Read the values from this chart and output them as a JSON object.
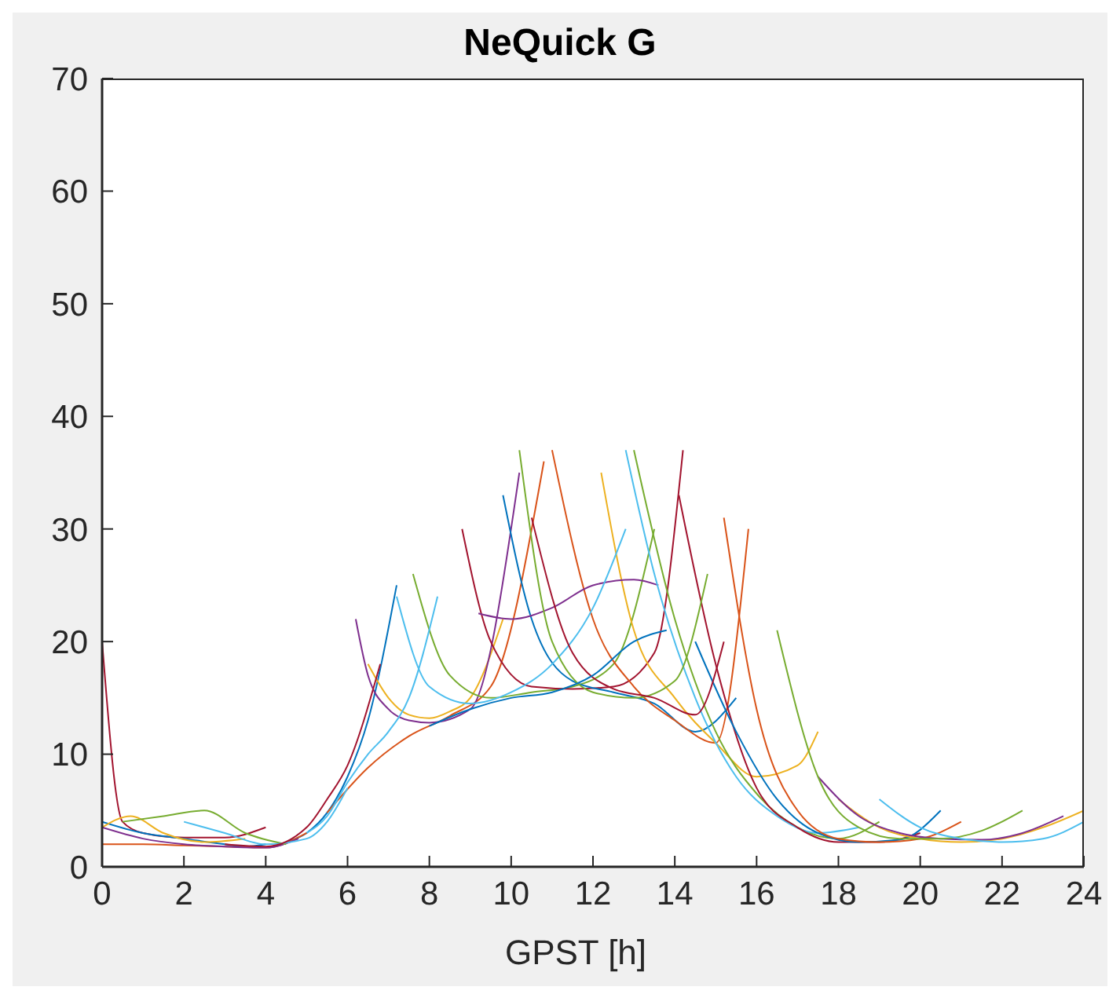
{
  "chart_data": {
    "type": "line",
    "title": "NeQuick G",
    "xlabel": "GPST [h]",
    "xlim": [
      0,
      24
    ],
    "xticks": [
      0,
      2,
      4,
      6,
      8,
      10,
      12,
      14,
      16,
      18,
      20,
      22,
      24
    ],
    "ylim": [
      0,
      70
    ],
    "yticks": [
      0,
      10,
      20,
      30,
      40,
      50,
      60,
      70
    ],
    "grid": false,
    "marker": "none",
    "line_style": "solid",
    "series": [
      {
        "color": "#0072bd",
        "x": [
          4.5,
          5,
          5.5,
          6,
          6.5,
          7.2
        ],
        "values": [
          2.2,
          3,
          4.8,
          8,
          13,
          25
        ]
      },
      {
        "color": "#d95319",
        "x": [
          5.5,
          6.5,
          7.5,
          8.5,
          9.5,
          10.8
        ],
        "values": [
          4.8,
          8.8,
          11.6,
          13.4,
          16,
          36
        ]
      },
      {
        "color": "#edb120",
        "x": [
          6.5,
          7,
          7.5,
          8,
          8.5,
          9,
          9.8
        ],
        "values": [
          18,
          15,
          13.5,
          13.2,
          13.8,
          15,
          22
        ]
      },
      {
        "color": "#7e2f8e",
        "x": [
          6.2,
          6.5,
          7,
          7.5,
          8,
          9,
          10.2
        ],
        "values": [
          22,
          17,
          14,
          13,
          12.8,
          14,
          35
        ]
      },
      {
        "color": "#77ac30",
        "x": [
          7.6,
          8.5,
          9.5,
          10.5,
          11.5,
          12.5,
          13.5
        ],
        "values": [
          26,
          17,
          15,
          15.5,
          16,
          18,
          30
        ]
      },
      {
        "color": "#4dbeee",
        "x": [
          5,
          5.5,
          6,
          6.5,
          7,
          7.5,
          8.2
        ],
        "values": [
          3,
          4.5,
          7.5,
          10,
          12,
          15,
          24
        ]
      },
      {
        "color": "#a2142f",
        "x": [
          8.8,
          9.5,
          10.5,
          11.5,
          12.5,
          13.5,
          14.2
        ],
        "values": [
          30,
          20,
          16,
          15.8,
          16,
          19,
          37
        ]
      },
      {
        "color": "#0072bd",
        "x": [
          9.8,
          10.5,
          11.5,
          12.5,
          13.5,
          14.5,
          15.5
        ],
        "values": [
          33,
          22,
          16.5,
          15.5,
          14.5,
          12,
          15
        ]
      },
      {
        "color": "#d95319",
        "x": [
          11,
          12,
          13,
          14,
          15,
          15.8
        ],
        "values": [
          37,
          22,
          16,
          13,
          11,
          30
        ]
      },
      {
        "color": "#edb120",
        "x": [
          12.2,
          13,
          14,
          15,
          16,
          17,
          17.5
        ],
        "values": [
          35,
          21,
          15,
          11,
          8,
          9,
          12
        ]
      },
      {
        "color": "#7e2f8e",
        "x": [
          9.2,
          10,
          11,
          12,
          13,
          13.6
        ],
        "values": [
          22.5,
          22,
          23,
          25,
          25.5,
          25
        ]
      },
      {
        "color": "#77ac30",
        "x": [
          13,
          14,
          15,
          16,
          17,
          18,
          19
        ],
        "values": [
          37,
          22,
          12,
          6.5,
          3.5,
          2.5,
          4
        ]
      },
      {
        "color": "#4dbeee",
        "x": [
          12.8,
          13.5,
          14.5,
          15.5,
          16.5,
          17.5,
          18.5
        ],
        "values": [
          37,
          26,
          15,
          8,
          4.5,
          3,
          3.5
        ]
      },
      {
        "color": "#a2142f",
        "x": [
          14.1,
          15,
          16,
          17,
          18,
          19,
          20
        ],
        "values": [
          33,
          18,
          7,
          3.5,
          2.2,
          2.2,
          3
        ]
      },
      {
        "color": "#0072bd",
        "x": [
          14.5,
          15.5,
          16.5,
          17.5,
          18.5,
          19.5,
          20.5
        ],
        "values": [
          20,
          12,
          6,
          3,
          2.2,
          2.4,
          5
        ]
      },
      {
        "color": "#d95319",
        "x": [
          15.2,
          16,
          17,
          18,
          19,
          20,
          21
        ],
        "values": [
          31,
          14,
          5,
          2.5,
          2.2,
          2.5,
          4
        ]
      },
      {
        "color": "#edb120",
        "x": [
          18,
          19,
          20,
          21,
          22,
          23,
          24
        ],
        "values": [
          6,
          3.5,
          2.5,
          2.2,
          2.5,
          3.5,
          5
        ]
      },
      {
        "color": "#7e2f8e",
        "x": [
          17.5,
          18.5,
          19.5,
          20.5,
          21.5,
          22.5,
          23.5
        ],
        "values": [
          8,
          4.5,
          3,
          2.5,
          2.4,
          3,
          4.5
        ]
      },
      {
        "color": "#77ac30",
        "x": [
          16.5,
          17.5,
          18.5,
          19.5,
          20.5,
          21.5,
          22.5
        ],
        "values": [
          21,
          8,
          3.5,
          2.5,
          2.5,
          3.2,
          5
        ]
      },
      {
        "color": "#4dbeee",
        "x": [
          19,
          20,
          21,
          22,
          23,
          24
        ],
        "values": [
          6,
          3.5,
          2.5,
          2.2,
          2.5,
          4
        ]
      },
      {
        "color": "#a2142f",
        "x": [
          0,
          0.5,
          1,
          2,
          3,
          4
        ],
        "values": [
          20,
          4,
          3,
          2.6,
          2.6,
          3.5
        ]
      },
      {
        "color": "#0072bd",
        "x": [
          0,
          1,
          2,
          3,
          3.5,
          4
        ],
        "values": [
          4,
          3,
          2.5,
          2,
          1.8,
          2
        ]
      },
      {
        "color": "#d95319",
        "x": [
          0,
          1,
          2,
          3,
          4,
          5
        ],
        "values": [
          2,
          2,
          1.9,
          1.8,
          1.7,
          3
        ]
      },
      {
        "color": "#edb120",
        "x": [
          0,
          0.7,
          1.5,
          2.5,
          3.5
        ],
        "values": [
          3.5,
          4.5,
          3,
          2.2,
          2.5
        ]
      },
      {
        "color": "#7e2f8e",
        "x": [
          0,
          1,
          2,
          3,
          4,
          4.8
        ],
        "values": [
          3.5,
          2.5,
          2,
          1.8,
          1.7,
          2.5
        ]
      },
      {
        "color": "#77ac30",
        "x": [
          0.5,
          1.5,
          2.5,
          3.5,
          4.5
        ],
        "values": [
          4,
          4.5,
          5,
          3,
          2
        ]
      },
      {
        "color": "#4dbeee",
        "x": [
          2,
          3,
          4,
          5,
          5.5,
          6
        ],
        "values": [
          4,
          3,
          2,
          2.5,
          4,
          7
        ]
      },
      {
        "color": "#a2142f",
        "x": [
          3,
          4,
          5,
          5.5,
          6,
          6.8
        ],
        "values": [
          2,
          1.8,
          3.5,
          6,
          9,
          18
        ]
      },
      {
        "color": "#4dbeee",
        "x": [
          7.2,
          8,
          9,
          10,
          11,
          12,
          12.8
        ],
        "values": [
          24,
          16,
          14.5,
          15.5,
          18,
          23,
          30
        ]
      },
      {
        "color": "#77ac30",
        "x": [
          10.2,
          11,
          12,
          13,
          14,
          14.8
        ],
        "values": [
          37,
          20,
          15.5,
          15,
          16.5,
          26
        ]
      },
      {
        "color": "#a2142f",
        "x": [
          10.5,
          11.5,
          12.5,
          13.5,
          14.5,
          15.2
        ],
        "values": [
          31,
          19,
          15.8,
          15,
          13.5,
          20
        ]
      },
      {
        "color": "#0072bd",
        "x": [
          8,
          9,
          10,
          11,
          12,
          13,
          13.8
        ],
        "values": [
          12.5,
          14,
          15,
          15.5,
          17,
          20,
          21
        ]
      }
    ]
  }
}
